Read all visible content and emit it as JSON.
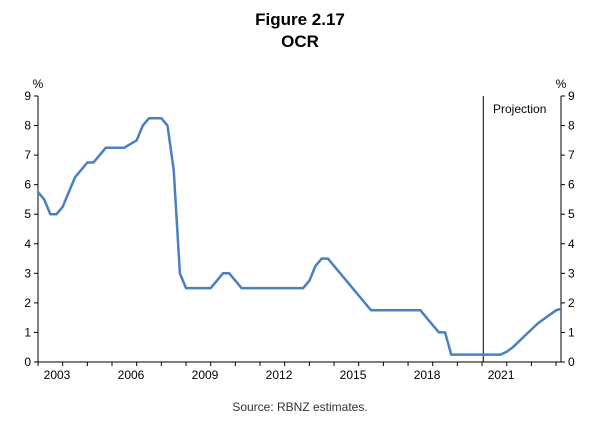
{
  "chart_data": {
    "type": "line",
    "title": "Figure 2.17",
    "subtitle": "OCR",
    "ylabel_left": "%",
    "ylabel_right": "%",
    "ylim": [
      0,
      9
    ],
    "yticks": [
      0,
      1,
      2,
      3,
      4,
      5,
      6,
      7,
      8,
      9
    ],
    "xlim": [
      2003,
      2024.2
    ],
    "xticks": [
      2003,
      2006,
      2009,
      2012,
      2015,
      2018,
      2021
    ],
    "projection_start": 2021.05,
    "projection_label": "Projection",
    "source": "Source: RBNZ estimates.",
    "color": "#4a7fc1",
    "series": [
      {
        "name": "OCR",
        "x": [
          2003.0,
          2003.25,
          2003.5,
          2003.75,
          2004.0,
          2004.25,
          2004.5,
          2004.75,
          2005.0,
          2005.25,
          2005.5,
          2005.75,
          2006.0,
          2006.5,
          2007.0,
          2007.25,
          2007.5,
          2007.75,
          2008.0,
          2008.25,
          2008.5,
          2008.75,
          2009.0,
          2009.25,
          2009.5,
          2009.75,
          2010.0,
          2010.25,
          2010.5,
          2010.75,
          2011.0,
          2011.25,
          2011.5,
          2012.0,
          2013.0,
          2013.75,
          2014.0,
          2014.25,
          2014.5,
          2014.75,
          2015.0,
          2015.25,
          2015.5,
          2015.75,
          2016.0,
          2016.25,
          2016.5,
          2016.75,
          2017.0,
          2017.5,
          2018.0,
          2018.5,
          2018.75,
          2019.0,
          2019.25,
          2019.5,
          2019.75,
          2020.0,
          2020.25,
          2021.0,
          2021.75,
          2022.0,
          2022.25,
          2022.5,
          2022.75,
          2023.0,
          2023.25,
          2023.5,
          2023.75,
          2024.0,
          2024.2
        ],
        "values": [
          5.75,
          5.5,
          5.0,
          5.0,
          5.25,
          5.75,
          6.25,
          6.5,
          6.75,
          6.75,
          7.0,
          7.25,
          7.25,
          7.25,
          7.5,
          8.0,
          8.25,
          8.25,
          8.25,
          8.0,
          6.5,
          3.0,
          2.5,
          2.5,
          2.5,
          2.5,
          2.5,
          2.75,
          3.0,
          3.0,
          2.75,
          2.5,
          2.5,
          2.5,
          2.5,
          2.5,
          2.75,
          3.25,
          3.5,
          3.5,
          3.25,
          3.0,
          2.75,
          2.5,
          2.25,
          2.0,
          1.75,
          1.75,
          1.75,
          1.75,
          1.75,
          1.75,
          1.5,
          1.25,
          1.0,
          1.0,
          0.25,
          0.25,
          0.25,
          0.25,
          0.25,
          0.35,
          0.5,
          0.7,
          0.9,
          1.1,
          1.3,
          1.45,
          1.6,
          1.75,
          1.8
        ]
      }
    ]
  }
}
